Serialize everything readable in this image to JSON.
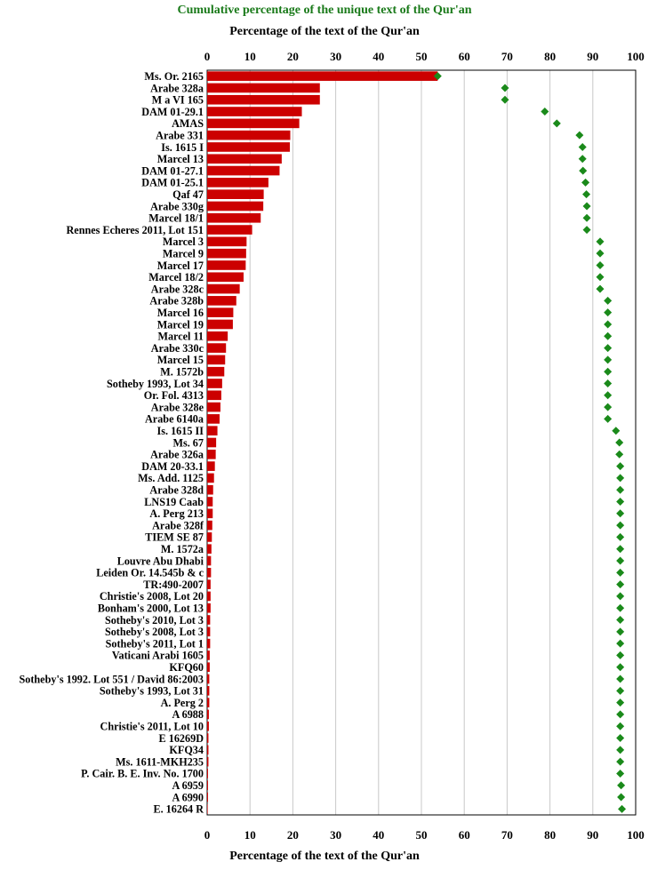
{
  "chart_data": {
    "type": "bar",
    "title": "Cumulative percentage of the unique text of the Qur'an",
    "xlabel": "Percentage of the text of the Qur'an",
    "xlim": [
      0,
      100
    ],
    "xticks": [
      "0",
      "10",
      "20",
      "30",
      "40",
      "50",
      "60",
      "70",
      "80",
      "90",
      "100"
    ],
    "grid": true,
    "colors": {
      "bar": "#cc0000",
      "marker": "#1a8a1a",
      "title": "#1a7a1a"
    },
    "categories": [
      "Ms. Or. 2165",
      "Arabe 328a",
      "M a VI 165",
      "DAM 01-29.1",
      "AMAS",
      "Arabe 331",
      "Is. 1615 I",
      "Marcel 13",
      "DAM 01-27.1",
      "DAM 01-25.1",
      "Qaf 47",
      "Arabe 330g",
      "Marcel 18/1",
      "Rennes Echeres 2011, Lot 151",
      "Marcel 3",
      "Marcel 9",
      "Marcel 17",
      "Marcel 18/2",
      "Arabe 328c",
      "Arabe 328b",
      "Marcel 16",
      "Marcel 19",
      "Marcel 11",
      "Arabe 330c",
      "Marcel 15",
      "M. 1572b",
      "Sotheby 1993, Lot 34",
      "Or. Fol. 4313",
      "Arabe 328e",
      "Arabe 6140a",
      "Is. 1615 II",
      "Ms. 67",
      "Arabe 326a",
      "DAM 20-33.1",
      "Ms. Add. 1125",
      "Arabe 328d",
      "LNS19 Caab",
      "A. Perg 213",
      "Arabe 328f",
      "TIEM SE 87",
      "M. 1572a",
      "Louvre Abu Dhabi",
      "Leiden Or. 14.545b & c",
      "TR:490-2007",
      "Christie's 2008, Lot 20",
      "Bonham's 2000, Lot 13",
      "Sotheby's 2010, Lot 3",
      "Sotheby's 2008, Lot 3",
      "Sotheby's 2011, Lot 1",
      "Vaticani Arabi 1605",
      "KFQ60",
      "Sotheby's 1992. Lot 551 / David 86:2003",
      "Sotheby's 1993, Lot 31",
      "A. Perg 2",
      "A 6988",
      "Christie's 2011, Lot 10",
      "E 16269D",
      "KFQ34",
      "Ms. 1611-MKH235",
      "P. Cair. B. E. Inv. No. 1700",
      "A 6959",
      "A 6990",
      "E. 16264 R"
    ],
    "series": [
      {
        "type": "bar",
        "values": [
          53.8,
          26.3,
          26.3,
          22.1,
          21.5,
          19.4,
          19.3,
          17.4,
          16.9,
          14.3,
          13.2,
          13.1,
          12.5,
          10.5,
          9.2,
          9.1,
          9.0,
          8.5,
          7.6,
          6.8,
          6.1,
          6.0,
          4.8,
          4.4,
          4.2,
          4.0,
          3.5,
          3.3,
          3.1,
          2.9,
          2.4,
          2.1,
          2.0,
          1.8,
          1.6,
          1.4,
          1.3,
          1.3,
          1.2,
          1.1,
          1.0,
          0.9,
          0.9,
          0.8,
          0.8,
          0.8,
          0.7,
          0.7,
          0.7,
          0.6,
          0.6,
          0.5,
          0.5,
          0.5,
          0.4,
          0.4,
          0.3,
          0.3,
          0.3,
          0.2,
          0.2,
          0.2,
          0.1
        ]
      },
      {
        "type": "scatter",
        "values": [
          53.8,
          69.5,
          69.5,
          78.8,
          81.6,
          86.9,
          87.6,
          87.6,
          87.7,
          88.3,
          88.5,
          88.6,
          88.6,
          88.6,
          91.7,
          91.7,
          91.7,
          91.7,
          91.7,
          93.5,
          93.5,
          93.5,
          93.5,
          93.5,
          93.5,
          93.5,
          93.5,
          93.5,
          93.5,
          93.5,
          95.4,
          96.2,
          96.2,
          96.4,
          96.4,
          96.4,
          96.4,
          96.4,
          96.4,
          96.4,
          96.4,
          96.4,
          96.4,
          96.4,
          96.4,
          96.4,
          96.4,
          96.4,
          96.4,
          96.4,
          96.4,
          96.4,
          96.4,
          96.4,
          96.4,
          96.4,
          96.4,
          96.4,
          96.4,
          96.4,
          96.6,
          96.6,
          96.8
        ]
      }
    ]
  }
}
